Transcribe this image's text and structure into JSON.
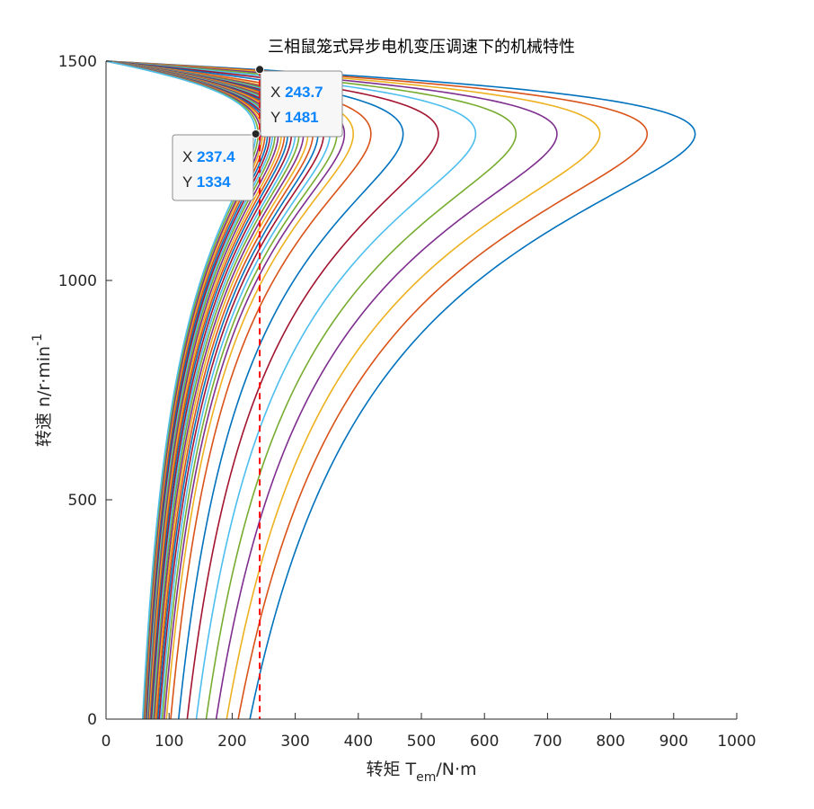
{
  "chart_data": {
    "type": "line",
    "title": "三相鼠笼式异步电机变压调速下的机械特性",
    "xlabel": {
      "main": "转矩 T",
      "sub": "em",
      "tail": "/N·m"
    },
    "ylabel": {
      "main": "转速 n/r·min",
      "sup": "-1"
    },
    "xlim": [
      0,
      1000
    ],
    "ylim": [
      0,
      1500
    ],
    "xticks": [
      0,
      100,
      200,
      300,
      400,
      500,
      600,
      700,
      800,
      900,
      1000
    ],
    "yticks": [
      0,
      500,
      1000,
      1500
    ],
    "grid": false,
    "series_description": "Torque-speed curves for voltage-controlled speed regulation; each curve has the same shape, scaled in torque.",
    "curve_shape": {
      "synchronous_speed": 1500,
      "peak_speed": 1334,
      "peak_torque_to_start_torque_ratio": 4.07
    },
    "peak_torques": [
      934,
      858,
      783,
      715,
      650,
      586,
      527,
      471,
      420,
      392,
      378,
      366,
      355,
      345,
      336,
      328,
      320,
      313,
      306,
      300,
      294,
      288,
      283,
      278,
      273,
      268,
      264,
      260,
      256,
      252,
      248,
      245,
      241,
      237.4
    ],
    "colors": [
      "#0072BD",
      "#D95319",
      "#EDB120",
      "#7E2F8E",
      "#77AC30",
      "#4DBEEE",
      "#A2142F"
    ],
    "load_line": {
      "torque": 243.7,
      "color": "#FF0000"
    },
    "datatips": [
      {
        "x_label": "X",
        "x": "243.7",
        "y_label": "Y",
        "y": "1481",
        "point": [
          243.7,
          1481
        ]
      },
      {
        "x_label": "X",
        "x": "237.4",
        "y_label": "Y",
        "y": "1334",
        "point": [
          237.4,
          1334
        ]
      }
    ]
  }
}
